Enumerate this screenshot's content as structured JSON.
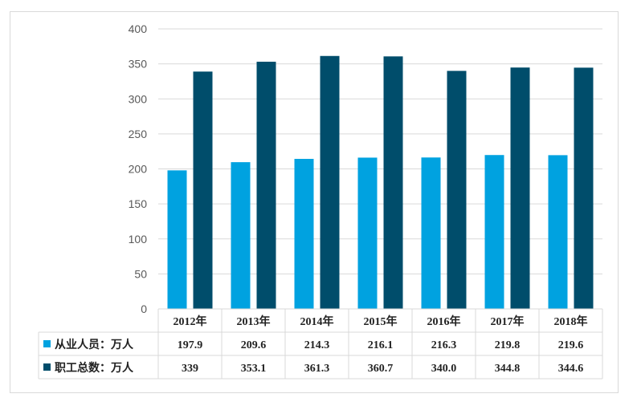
{
  "chart_data": {
    "type": "bar",
    "categories": [
      "2012年",
      "2013年",
      "2014年",
      "2015年",
      "2016年",
      "2017年",
      "2018年"
    ],
    "series": [
      {
        "name": "从业人员：万人",
        "color": "#00a2e0",
        "values": [
          197.9,
          209.6,
          214.3,
          216.1,
          216.3,
          219.8,
          219.6
        ],
        "labels": [
          "197.9",
          "209.6",
          "214.3",
          "216.1",
          "216.3",
          "219.8",
          "219.6"
        ]
      },
      {
        "name": "职工总数：万人",
        "color": "#004d6b",
        "values": [
          339,
          353.1,
          361.3,
          360.7,
          340.0,
          344.8,
          344.6
        ],
        "labels": [
          "339",
          "353.1",
          "361.3",
          "360.7",
          "340.0",
          "344.8",
          "344.6"
        ]
      }
    ],
    "ylim": [
      0,
      400
    ],
    "yticks": [
      0,
      50,
      100,
      150,
      200,
      250,
      300,
      350,
      400
    ],
    "grid": true,
    "legend": "data-table-left"
  }
}
